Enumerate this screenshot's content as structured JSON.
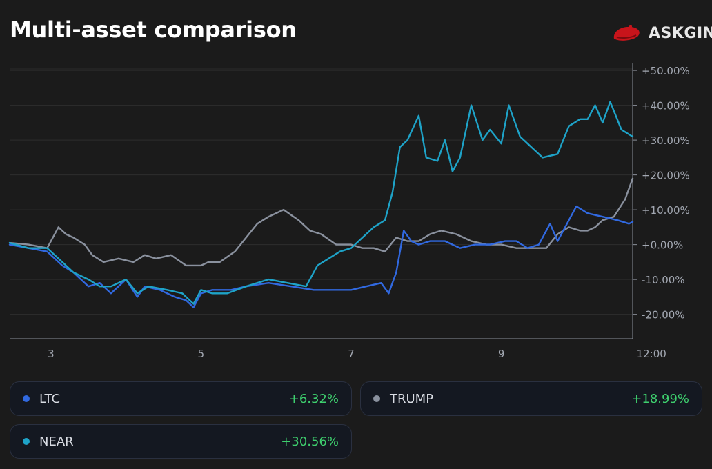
{
  "title": "Multi-asset comparison",
  "brand": {
    "name": "ASKGINA",
    "logo_icon": "red-beret-icon",
    "logo_color": "#c8141b"
  },
  "chart_data": {
    "type": "line",
    "title": "Multi-asset comparison",
    "xlabel": "",
    "ylabel": "",
    "x_ticks": [
      "3",
      "5",
      "7",
      "9",
      "12:00"
    ],
    "x_tick_positions": [
      3,
      5,
      7,
      9,
      11
    ],
    "xlim": [
      2.45,
      10.75
    ],
    "y_ticks": [
      "+50.00%",
      "+40.00%",
      "+30.00%",
      "+20.00%",
      "+10.00%",
      "+0.00%",
      "-10.00%",
      "-20.00%"
    ],
    "y_tick_values": [
      50,
      40,
      30,
      20,
      10,
      0,
      -10,
      -20
    ],
    "ylim": [
      -27,
      52
    ],
    "grid": true,
    "series": [
      {
        "name": "TRUMP",
        "color": "#8a919e",
        "x": [
          2.45,
          2.7,
          2.95,
          3.1,
          3.2,
          3.3,
          3.45,
          3.55,
          3.7,
          3.9,
          4.1,
          4.25,
          4.4,
          4.6,
          4.8,
          5.0,
          5.1,
          5.25,
          5.45,
          5.6,
          5.75,
          5.9,
          6.1,
          6.3,
          6.45,
          6.6,
          6.8,
          7.0,
          7.15,
          7.3,
          7.45,
          7.6,
          7.75,
          7.9,
          8.05,
          8.2,
          8.4,
          8.6,
          8.8,
          9.0,
          9.2,
          9.4,
          9.6,
          9.75,
          9.9,
          10.05,
          10.15,
          10.25,
          10.35,
          10.5,
          10.65,
          10.75
        ],
        "values": [
          0.5,
          0,
          -1,
          5,
          3,
          2,
          0,
          -3,
          -5,
          -4,
          -5,
          -3,
          -4,
          -3,
          -6,
          -6,
          -5,
          -5,
          -2,
          2,
          6,
          8,
          10,
          7,
          4,
          3,
          0,
          0,
          -1,
          -1,
          -2,
          2,
          1,
          1,
          3,
          4,
          3,
          1,
          0,
          0,
          -1,
          -1,
          -1,
          3,
          5,
          4,
          4,
          5,
          7,
          8,
          13,
          19
        ]
      },
      {
        "name": "LTC",
        "color": "#3169e0",
        "x": [
          2.45,
          2.7,
          2.95,
          3.15,
          3.3,
          3.5,
          3.65,
          3.8,
          4.0,
          4.15,
          4.25,
          4.45,
          4.65,
          4.8,
          4.9,
          5.0,
          5.15,
          5.4,
          5.6,
          5.9,
          6.2,
          6.5,
          6.8,
          7.0,
          7.2,
          7.4,
          7.5,
          7.6,
          7.7,
          7.8,
          7.9,
          8.05,
          8.25,
          8.45,
          8.65,
          8.85,
          9.05,
          9.2,
          9.35,
          9.5,
          9.65,
          9.75,
          9.85,
          10.0,
          10.15,
          10.35,
          10.55,
          10.7,
          10.75
        ],
        "values": [
          0,
          -1,
          -2,
          -6,
          -8,
          -12,
          -11,
          -14,
          -10,
          -15,
          -12,
          -13,
          -15,
          -16,
          -18,
          -14,
          -13,
          -13,
          -12,
          -11,
          -12,
          -13,
          -13,
          -13,
          -12,
          -11,
          -14,
          -8,
          4,
          1,
          0,
          1,
          1,
          -1,
          0,
          0,
          1,
          1,
          -1,
          0,
          6,
          1,
          5,
          11,
          9,
          8,
          7,
          6,
          6.5
        ]
      },
      {
        "name": "NEAR",
        "color": "#1ea3c8",
        "x": [
          2.45,
          2.7,
          2.95,
          3.15,
          3.3,
          3.5,
          3.65,
          3.8,
          4.0,
          4.15,
          4.3,
          4.55,
          4.75,
          4.9,
          5.0,
          5.15,
          5.35,
          5.6,
          5.9,
          6.15,
          6.4,
          6.55,
          6.7,
          6.85,
          7.0,
          7.15,
          7.3,
          7.45,
          7.55,
          7.65,
          7.75,
          7.9,
          8.0,
          8.15,
          8.25,
          8.35,
          8.45,
          8.6,
          8.75,
          8.85,
          9.0,
          9.1,
          9.25,
          9.4,
          9.55,
          9.75,
          9.9,
          10.05,
          10.15,
          10.25,
          10.35,
          10.45,
          10.6,
          10.75
        ],
        "values": [
          0.5,
          -1,
          -1,
          -5,
          -8,
          -10,
          -12,
          -12,
          -10,
          -14,
          -12,
          -13,
          -14,
          -17,
          -13,
          -14,
          -14,
          -12,
          -10,
          -11,
          -12,
          -6,
          -4,
          -2,
          -1,
          2,
          5,
          7,
          15,
          28,
          30,
          37,
          25,
          24,
          30,
          21,
          25,
          40,
          30,
          33,
          29,
          40,
          31,
          28,
          25,
          26,
          34,
          36,
          36,
          40,
          35,
          41,
          33,
          31
        ]
      }
    ],
    "legend": [
      {
        "name": "LTC",
        "color": "#3169e0",
        "change": "+6.32%"
      },
      {
        "name": "TRUMP",
        "color": "#8a919e",
        "change": "+18.99%"
      },
      {
        "name": "NEAR",
        "color": "#1ea3c8",
        "change": "+30.56%"
      }
    ]
  }
}
